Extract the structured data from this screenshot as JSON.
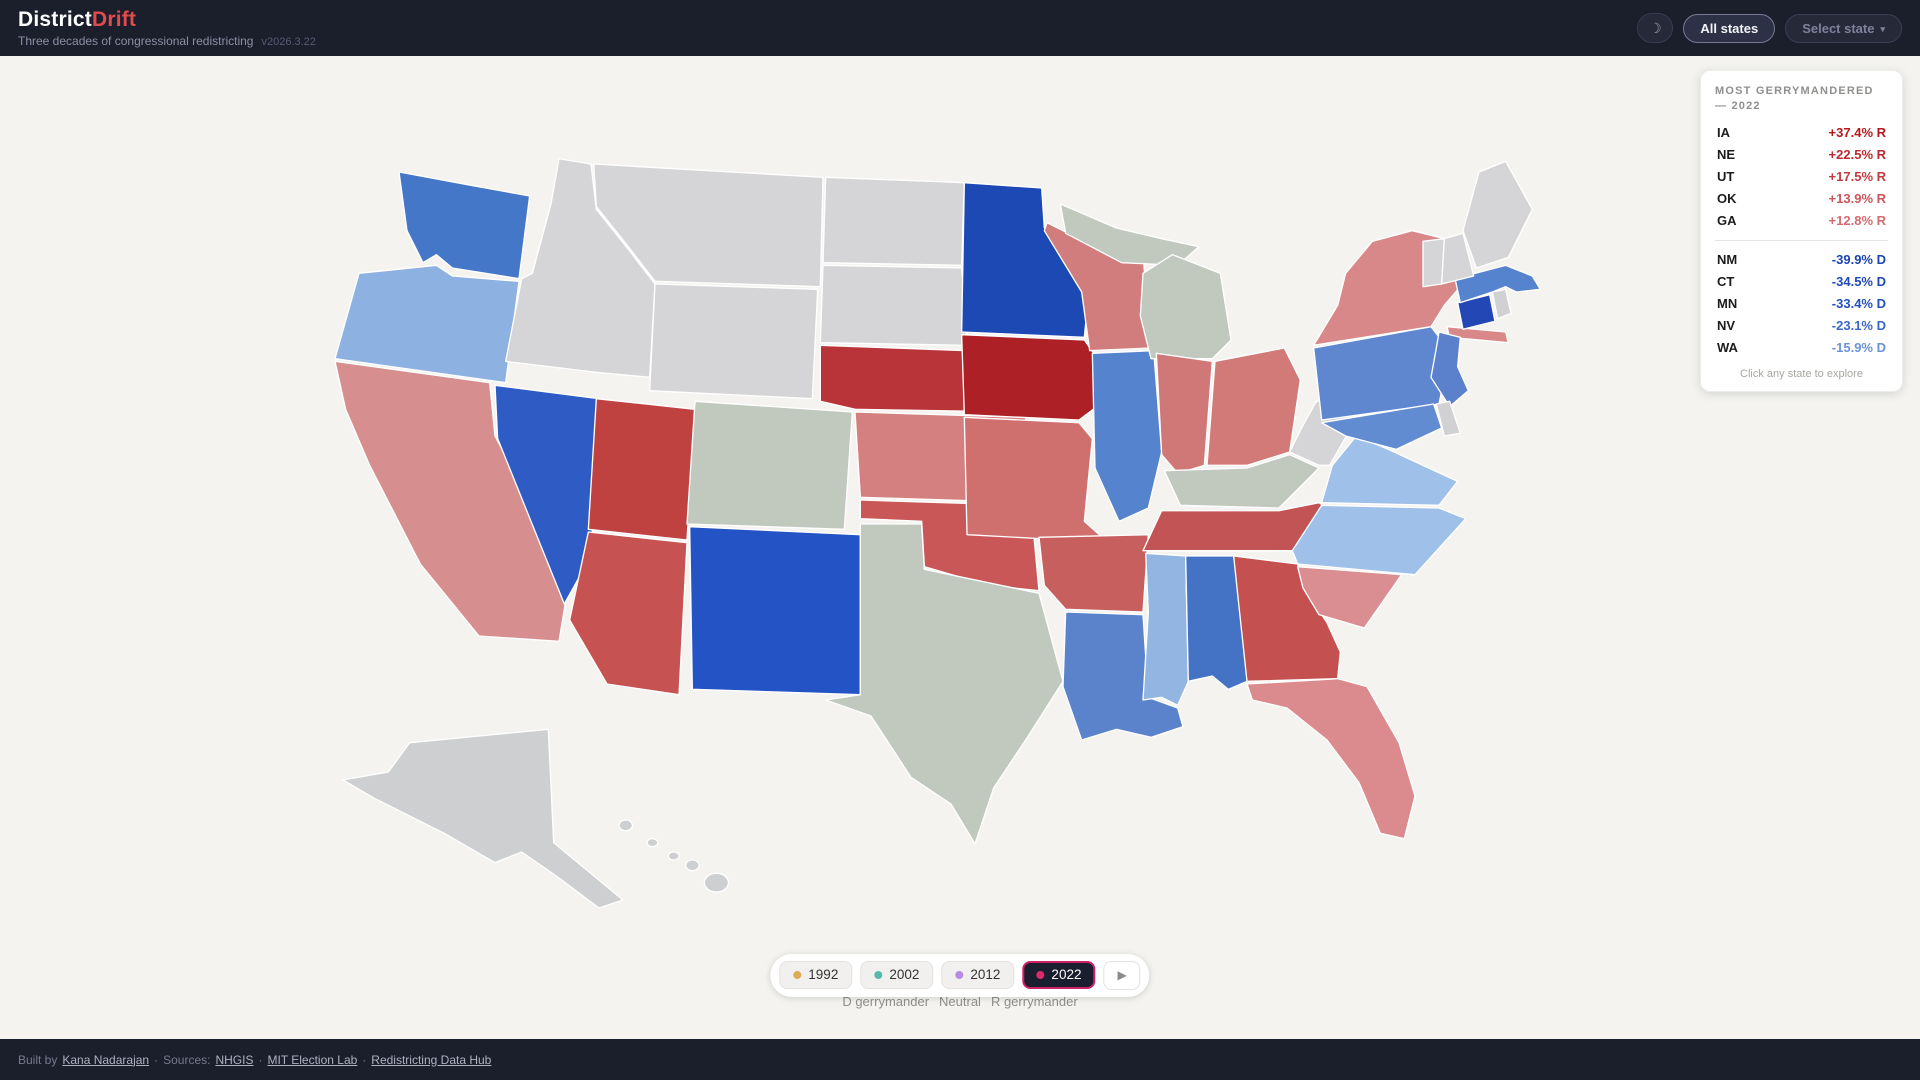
{
  "header": {
    "title_primary": "District",
    "title_accent": "Drift",
    "subtitle": "Three decades of congressional redistricting",
    "version": "v2026.3.22",
    "all_states_label": "All states",
    "select_state_label": "Select state",
    "accent_color": "#e04b4b"
  },
  "icons": {
    "moon": "☽",
    "caret": "▾",
    "play": "▶"
  },
  "panel": {
    "title": "MOST GERRYMANDERED — 2022",
    "republican_rows": [
      {
        "state": "IA",
        "value": "+37.4% R",
        "color": "#b5181f"
      },
      {
        "state": "NE",
        "value": "+22.5% R",
        "color": "#ba2a30"
      },
      {
        "state": "UT",
        "value": "+17.5% R",
        "color": "#c23b41"
      },
      {
        "state": "OK",
        "value": "+13.9% R",
        "color": "#cd555b"
      },
      {
        "state": "GA",
        "value": "+12.8% R",
        "color": "#d56b70"
      }
    ],
    "democratic_rows": [
      {
        "state": "NM",
        "value": "-39.9% D",
        "color": "#1c44b2"
      },
      {
        "state": "CT",
        "value": "-34.5% D",
        "color": "#1f4ab6"
      },
      {
        "state": "MN",
        "value": "-33.4% D",
        "color": "#2351bc"
      },
      {
        "state": "NV",
        "value": "-23.1% D",
        "color": "#3a66c8"
      },
      {
        "state": "WA",
        "value": "-15.9% D",
        "color": "#6b92d8"
      }
    ],
    "footnote": "Click any state to explore"
  },
  "timeline": {
    "years": [
      {
        "label": "1992",
        "dot_color": "#dcab55",
        "active": false
      },
      {
        "label": "2002",
        "dot_color": "#58b8ae",
        "active": false
      },
      {
        "label": "2012",
        "dot_color": "#b68ce2",
        "active": false
      },
      {
        "label": "2022",
        "dot_color": "#e2286c",
        "active": true
      }
    ],
    "active_border_color": "#cf2168"
  },
  "legend": {
    "d_label": "D gerrymander",
    "neutral_label": "Neutral",
    "r_label": "R gerrymander"
  },
  "footer": {
    "built_by_text": "Built by",
    "author": "Kana Nadarajan",
    "separator": "·",
    "sources_text": "Sources:",
    "source_links": [
      "NHGIS",
      "MIT Election Lab",
      "Redistricting Data Hub"
    ]
  },
  "map": {
    "background": "#f4f3f0",
    "state_border_color": "#ffffff",
    "state_fills": {
      "AL": "#4472c5",
      "AK": "#cdcfd1",
      "AZ": "#c65351",
      "AR": "#c75f5f",
      "CA": "#d68e8e",
      "CO": "#c1c8be",
      "CT": "#2347b5",
      "DE": "#d1d1d3",
      "FL": "#db8a8e",
      "GA": "#c4514f",
      "HI": "#cdcfd1",
      "ID": "#d5d5d7",
      "IL": "#5583ce",
      "IN": "#d07878",
      "IA": "#ad2025",
      "KS": "#d58080",
      "KY": "#c1c8be",
      "LA": "#5b83cc",
      "ME": "#d5d5d7",
      "MD": "#628cd2",
      "MA": "#5583ce",
      "MI": "#c1c8be",
      "MN": "#1d49b4",
      "MS": "#92b5e2",
      "MO": "#d0706e",
      "MT": "#d5d5d7",
      "NE": "#b93439",
      "NV": "#2e5cc4",
      "NH": "#d5d5d7",
      "NJ": "#5b80cc",
      "NM": "#2353c4",
      "NY": "#d88888",
      "NC": "#9fc0e8",
      "ND": "#d5d5d7",
      "OH": "#d17a78",
      "OK": "#ca5757",
      "OR": "#8db1e0",
      "PA": "#5e87d0",
      "RI": "#d1d1d3",
      "SC": "#da8e91",
      "SD": "#d5d5d7",
      "TN": "#c25456",
      "TX": "#c1c8be",
      "UT": "#bf4240",
      "VT": "#d5d5d7",
      "VA": "#9fc0e8",
      "WA": "#4577c8",
      "WV": "#d5d5d7",
      "WI": "#d27d7d",
      "WY": "#d5d5d7"
    }
  }
}
